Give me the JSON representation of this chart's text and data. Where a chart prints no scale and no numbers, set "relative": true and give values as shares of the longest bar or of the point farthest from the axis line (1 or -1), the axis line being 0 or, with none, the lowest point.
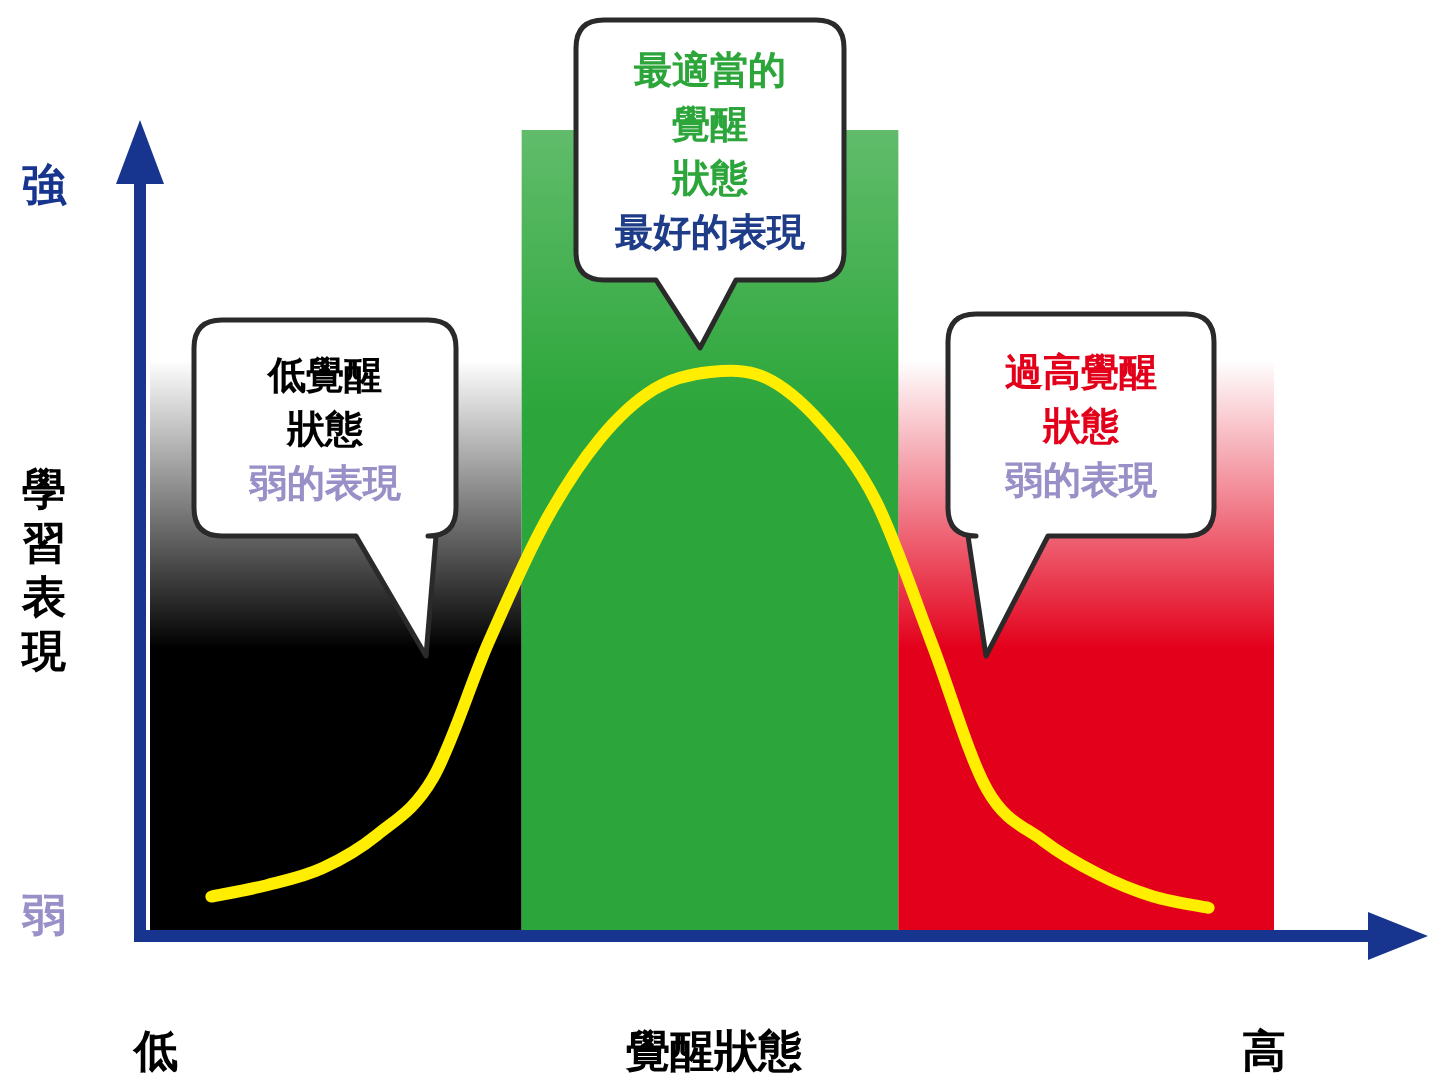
{
  "chart_data": {
    "type": "line",
    "relative": true,
    "xlabel": "覺醒狀態",
    "ylabel": "學習表現",
    "categories": [
      "低",
      null,
      null,
      null,
      null,
      null,
      null,
      null,
      null,
      null,
      null,
      null,
      null,
      null,
      null,
      null,
      null,
      null,
      null,
      null,
      "高"
    ],
    "series": [
      {
        "color": "#ffee00",
        "values": [
          null,
          0.07,
          0.09,
          0.12,
          0.18,
          0.28,
          0.52,
          0.73,
          0.88,
          0.97,
          1.0,
          0.99,
          0.91,
          0.77,
          0.52,
          0.26,
          0.17,
          0.11,
          0.07,
          0.05,
          null
        ]
      }
    ],
    "annotations": [
      "強",
      "弱",
      "低覺醒狀態",
      "弱的表現",
      "最適當的覺醒狀態",
      "最好的表現",
      "過高覺醒狀態",
      "弱的表現"
    ]
  }
}
